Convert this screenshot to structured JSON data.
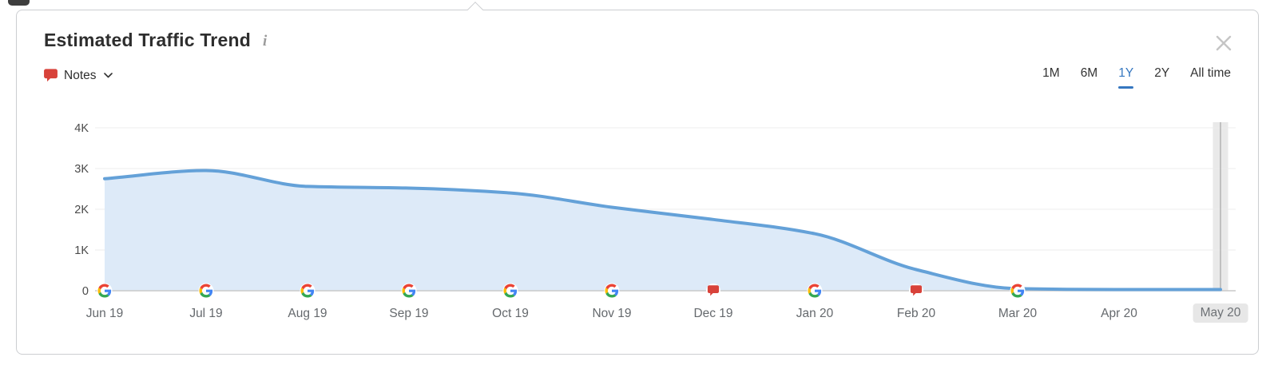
{
  "header": {
    "title": "Estimated Traffic Trend",
    "info_icon_glyph": "i"
  },
  "notes_control": {
    "label": "Notes"
  },
  "time_range_tabs": [
    {
      "label": "1M",
      "active": false
    },
    {
      "label": "6M",
      "active": false
    },
    {
      "label": "1Y",
      "active": true
    },
    {
      "label": "2Y",
      "active": false
    },
    {
      "label": "All time",
      "active": false
    }
  ],
  "chart_data": {
    "type": "area",
    "title": "Estimated Traffic Trend",
    "x": [
      "Jun 19",
      "Jul 19",
      "Aug 19",
      "Sep 19",
      "Oct 19",
      "Nov 19",
      "Dec 19",
      "Jan 20",
      "Feb 20",
      "Mar 20",
      "Apr 20",
      "May 20"
    ],
    "values": [
      2750,
      2950,
      2560,
      2520,
      2400,
      2050,
      1750,
      1400,
      520,
      50,
      30,
      30
    ],
    "ylim": [
      0,
      4000
    ],
    "yticks": [
      {
        "label": "4K",
        "value": 4000
      },
      {
        "label": "3K",
        "value": 3000
      },
      {
        "label": "2K",
        "value": 2000
      },
      {
        "label": "1K",
        "value": 1000
      },
      {
        "label": "0",
        "value": 0
      }
    ],
    "x_axis_markers": [
      "google",
      "google",
      "google",
      "google",
      "google",
      "google",
      "note",
      "google",
      "note",
      "google",
      null,
      null
    ],
    "highlighted_x": "May 20",
    "crosshair_x": "May 20",
    "grid": true,
    "legend": false,
    "colors": {
      "line": "#64a1d8",
      "area": "#ddeaf8",
      "grid": "#ececec",
      "axis_line": "#c9c9c9",
      "note_red": "#d8423a",
      "active_tab": "#3577c0",
      "crosshair_band": "#e9e9e9",
      "crosshair_line": "#b3b3b3",
      "highlight_bg": "#e7e7e7"
    }
  }
}
